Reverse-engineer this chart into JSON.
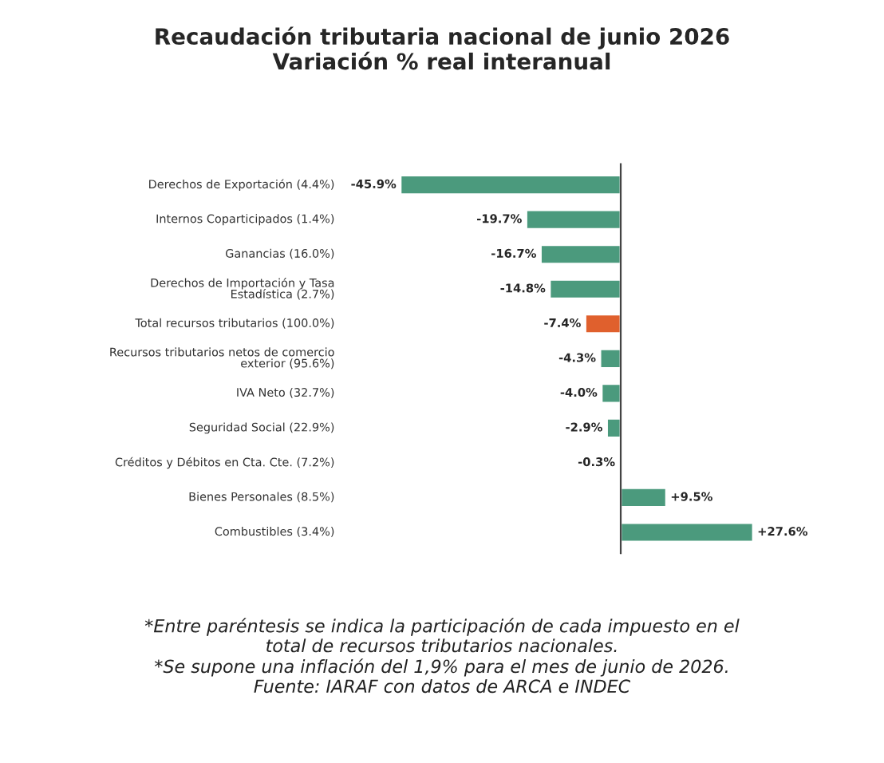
{
  "chart_data": {
    "type": "bar",
    "orientation": "horizontal",
    "title": "Recaudación tributaria nacional de junio 2026\nVariación % real interanual",
    "categories": [
      "Derechos de Exportación (4.4%)",
      "Internos Coparticipados (1.4%)",
      "Ganancias (16.0%)",
      "Derechos de Importación y Tasa\nEstadística (2.7%)",
      "Total recursos tributarios (100.0%)",
      "Recursos tributarios netos de comercio\nexterior (95.6%)",
      "IVA Neto (32.7%)",
      "Seguridad Social (22.9%)",
      "Créditos y Débitos en Cta. Cte. (7.2%)",
      "Bienes Personales (8.5%)",
      "Combustibles (3.4%)"
    ],
    "values": [
      -45.9,
      -19.7,
      -16.7,
      -14.8,
      -7.4,
      -4.3,
      -4.0,
      -2.9,
      -0.3,
      9.5,
      27.6
    ],
    "value_labels": [
      "-45.9%",
      "-19.7%",
      "-16.7%",
      "-14.8%",
      "-7.4%",
      "-4.3%",
      "-4.0%",
      "-2.9%",
      "-0.3%",
      "+9.5%",
      "+27.6%"
    ],
    "colors": [
      "#4b9a7d",
      "#4b9a7d",
      "#4b9a7d",
      "#4b9a7d",
      "#e0602d",
      "#4b9a7d",
      "#4b9a7d",
      "#4b9a7d",
      "#4b9a7d",
      "#4b9a7d",
      "#4b9a7d"
    ],
    "annotations": [
      "*Entre paréntesis se indica la participación de cada impuesto en el\ntotal de recursos tributarios nacionales.\n*Se supone una inflación del 1,9% para el mes de junio de 2026.\nFuente: IARAF con datos de ARCA e INDEC"
    ],
    "relative": false
  }
}
